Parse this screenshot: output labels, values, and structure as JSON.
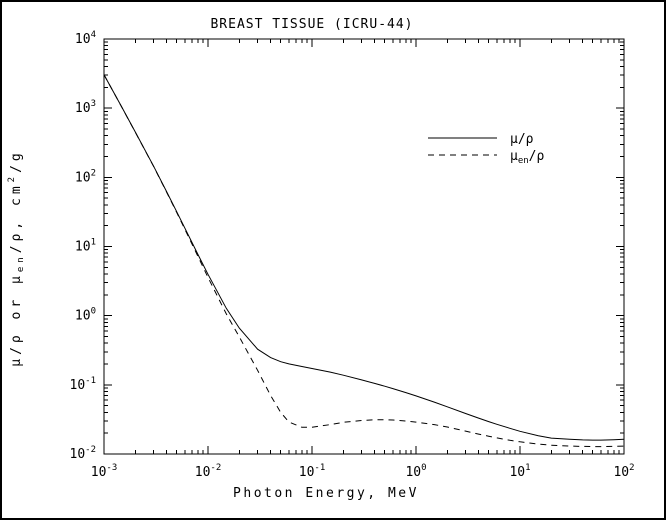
{
  "chart_data": {
    "type": "line",
    "title": "BREAST TISSUE (ICRU-44)",
    "xlabel": "Photon Energy, MeV",
    "ylabel": "μ/ρ or μen/ρ, cm²/g",
    "ylabel_parts": [
      "μ/ρ or μ",
      "en",
      "/ρ, cm",
      "2",
      "/g"
    ],
    "x_scale": "log",
    "y_scale": "log",
    "xlim": [
      0.001,
      100
    ],
    "ylim": [
      0.01,
      10000
    ],
    "x_tick_exponents": [
      -3,
      -2,
      -1,
      0,
      1,
      2
    ],
    "y_tick_exponents": [
      -2,
      -1,
      0,
      1,
      2,
      3,
      4
    ],
    "tick_base": "10",
    "grid": false,
    "frame_color": "#000000",
    "background_color": "#ffffff",
    "line_color": "#000000",
    "legend": {
      "position": "upper-right-inside",
      "items": [
        {
          "line_style": "solid",
          "label": "μ/ρ"
        },
        {
          "line_style": "dashed",
          "label_pre": "μ",
          "label_sub": "en",
          "label_post": "/ρ"
        }
      ]
    },
    "x": [
      0.001,
      0.0015,
      0.002,
      0.003,
      0.004,
      0.005,
      0.006,
      0.008,
      0.01,
      0.015,
      0.02,
      0.03,
      0.04,
      0.05,
      0.06,
      0.08,
      0.1,
      0.15,
      0.2,
      0.3,
      0.4,
      0.5,
      0.6,
      0.8,
      1.0,
      1.5,
      2.0,
      3.0,
      4.0,
      5.0,
      6.0,
      8.0,
      10,
      15,
      20,
      30,
      40,
      50,
      60,
      80,
      100
    ],
    "series": [
      {
        "name": "μ/ρ",
        "line_style": "solid",
        "color": "#000000",
        "values": [
          3045,
          1004,
          452,
          145,
          62.1,
          31.9,
          18.4,
          7.69,
          3.97,
          1.28,
          0.662,
          0.328,
          0.248,
          0.216,
          0.201,
          0.184,
          0.172,
          0.153,
          0.138,
          0.118,
          0.105,
          0.0955,
          0.0881,
          0.0771,
          0.0691,
          0.0562,
          0.0482,
          0.0385,
          0.033,
          0.0294,
          0.0269,
          0.0235,
          0.0213,
          0.0184,
          0.017,
          0.0163,
          0.016,
          0.0159,
          0.0159,
          0.0161,
          0.0163
        ]
      },
      {
        "name": "μen/ρ",
        "line_style": "dashed",
        "color": "#000000",
        "values": [
          3043,
          1001,
          450,
          144,
          61.1,
          31.1,
          17.7,
          7.22,
          3.58,
          1.06,
          0.494,
          0.162,
          0.07,
          0.04,
          0.029,
          0.0243,
          0.0244,
          0.0266,
          0.0287,
          0.0305,
          0.0312,
          0.0313,
          0.031,
          0.03,
          0.0289,
          0.0266,
          0.0246,
          0.0214,
          0.0194,
          0.0181,
          0.0171,
          0.0158,
          0.015,
          0.0139,
          0.0134,
          0.013,
          0.0129,
          0.0128,
          0.0128,
          0.0129,
          0.013
        ]
      }
    ]
  }
}
